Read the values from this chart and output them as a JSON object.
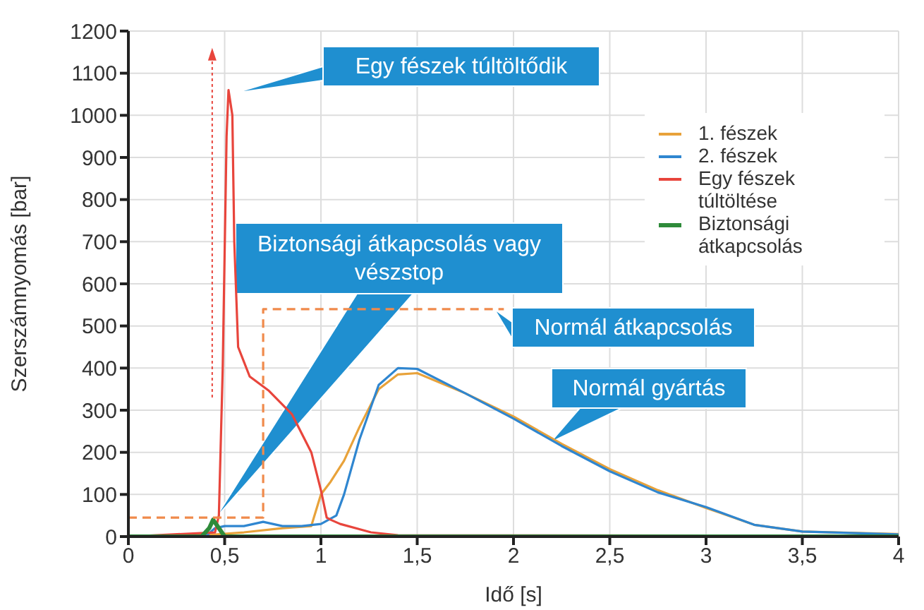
{
  "chart_data": {
    "type": "line",
    "xlabel": "Idő [s]",
    "ylabel": "Szerszámnyomás [bar]",
    "xlim": [
      0,
      4
    ],
    "xticks": [
      0,
      {
        "value": 0.5,
        "label": "0,5"
      },
      1,
      {
        "value": 1.5,
        "label": "1,5"
      },
      2,
      {
        "value": 2.5,
        "label": "2,5"
      },
      3,
      {
        "value": 3.5,
        "label": "3,5"
      },
      4
    ],
    "ylim": [
      0,
      1200
    ],
    "yticks": [
      0,
      100,
      200,
      300,
      400,
      500,
      600,
      700,
      800,
      900,
      1000,
      1100,
      1200
    ],
    "grid": true,
    "legend": "right",
    "line_style": "solid",
    "marker": "none",
    "series": [
      {
        "name": "1. fészek",
        "color": "#e8a23a",
        "x": [
          0,
          0.45,
          0.6,
          0.8,
          0.95,
          1.0,
          1.05,
          1.12,
          1.2,
          1.3,
          1.4,
          1.5,
          1.75,
          2,
          2.25,
          2.5,
          2.75,
          3,
          3.25,
          3.5,
          4
        ],
        "values": [
          0,
          5,
          10,
          20,
          25,
          100,
          130,
          180,
          260,
          350,
          385,
          388,
          340,
          285,
          220,
          160,
          110,
          68,
          28,
          12,
          6
        ]
      },
      {
        "name": "2. fészek",
        "color": "#2f86d0",
        "x": [
          0,
          0.4,
          0.45,
          0.5,
          0.6,
          0.7,
          0.8,
          0.9,
          1.0,
          1.08,
          1.12,
          1.2,
          1.3,
          1.4,
          1.5,
          1.75,
          2,
          2.25,
          2.5,
          2.75,
          3,
          3.25,
          3.5,
          4
        ],
        "values": [
          0,
          0,
          20,
          25,
          25,
          35,
          25,
          25,
          30,
          50,
          100,
          230,
          360,
          400,
          398,
          340,
          280,
          215,
          155,
          105,
          70,
          28,
          12,
          5
        ]
      },
      {
        "name": "Egy fészek túltöltése",
        "color": "#e8453c",
        "x": [
          0,
          0.45,
          0.47,
          0.49,
          0.51,
          0.52,
          0.54,
          0.55,
          0.57,
          0.63,
          0.73,
          0.85,
          0.95,
          1.0,
          1.03,
          1.05,
          1.1,
          1.26,
          1.4,
          4
        ],
        "values": [
          0,
          10,
          50,
          400,
          950,
          1060,
          1000,
          700,
          450,
          380,
          346,
          290,
          200,
          110,
          45,
          40,
          30,
          10,
          3,
          2
        ]
      },
      {
        "name": "Biztonsági átkapcsolás",
        "color": "#2e8b3a",
        "x": [
          0,
          0.38,
          0.42,
          0.44,
          0.47,
          0.5,
          4
        ],
        "values": [
          0,
          0,
          20,
          40,
          20,
          0,
          0
        ]
      },
      {
        "color": "#f08a4b",
        "line_style": "dashed",
        "x": [
          0,
          0.7,
          0.7,
          1.95
        ],
        "values": [
          45,
          45,
          540,
          540
        ]
      }
    ],
    "annotations": [
      "Egy fészek túltöltődik",
      "Biztonsági átkapcsolás vagy\nvészstop",
      {
        "text": "Normál átkapcsolás",
        "x": 1.9,
        "y": 540
      },
      {
        "text": "Normál gyártás",
        "x": 2.19,
        "y": 223
      }
    ]
  }
}
